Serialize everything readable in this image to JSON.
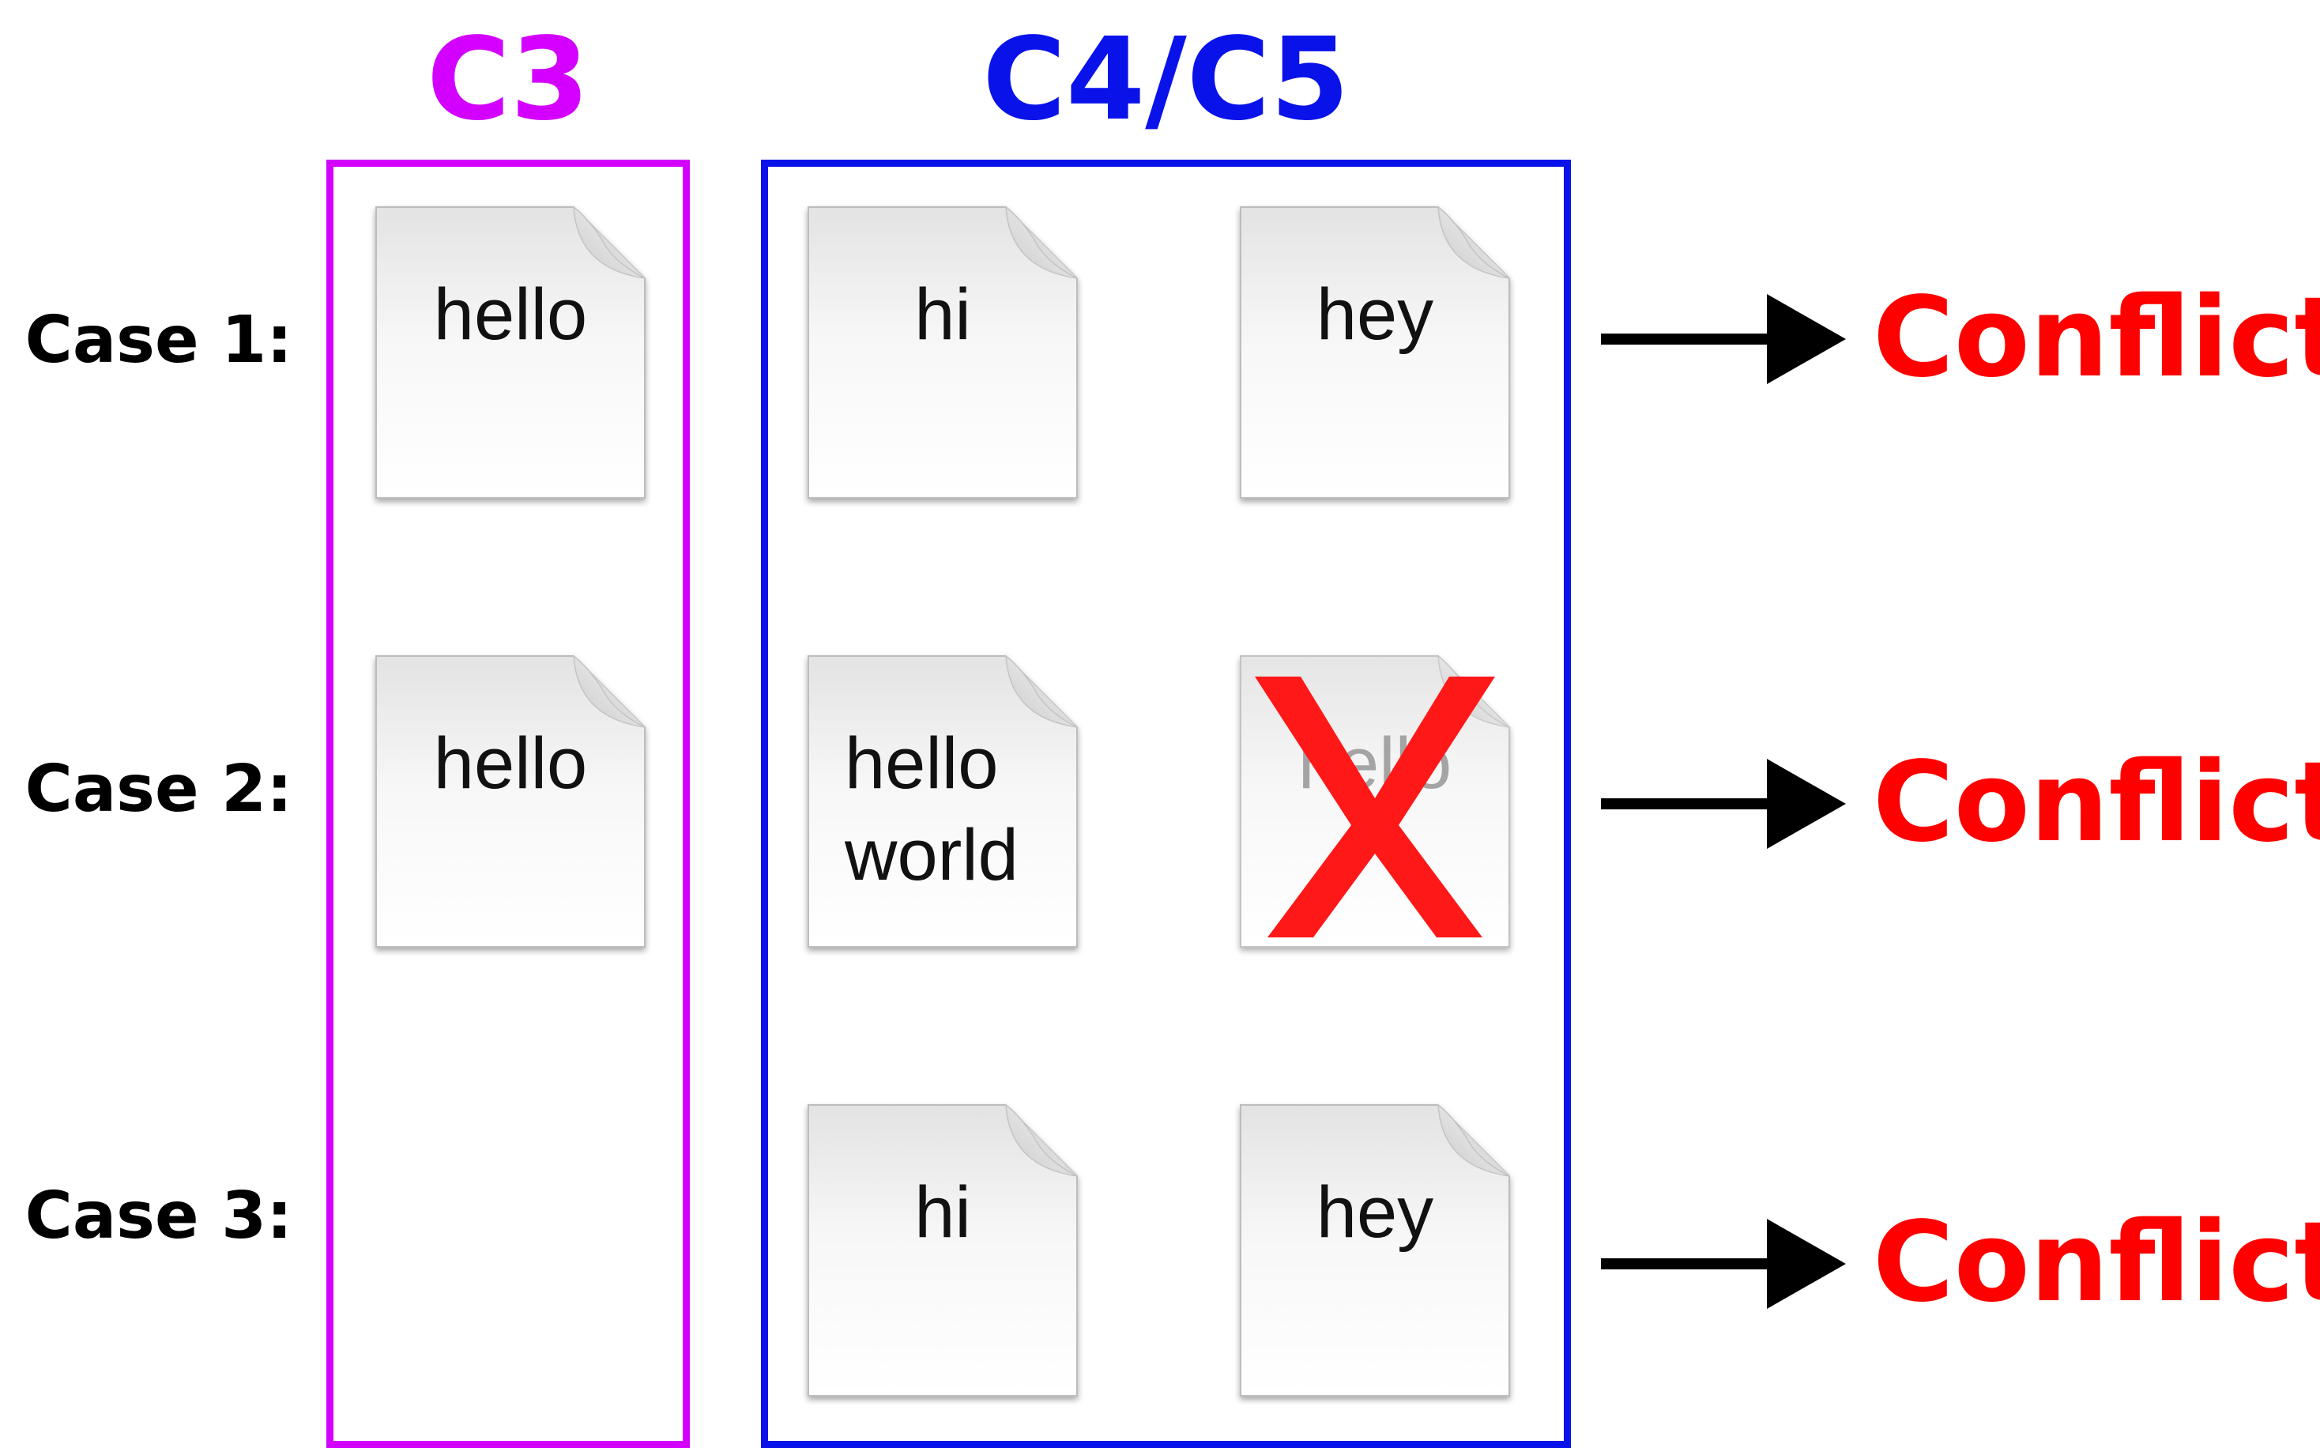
{
  "columns": {
    "c3": {
      "title": "C3",
      "color": "#d400ff"
    },
    "c45": {
      "title": "C4/C5",
      "color": "#0a12ea"
    }
  },
  "cases": [
    {
      "label": "Case 1:",
      "c3_file": "hello",
      "c4_file": "hi",
      "c5_file": "hey",
      "result": "Conflict"
    },
    {
      "label": "Case 2:",
      "c3_file": "hello",
      "c4_file_line1": "hello",
      "c4_file_line2": "world",
      "c5_file_deleted": "hello",
      "result": "Conflict"
    },
    {
      "label": "Case 3:",
      "c3_file": "",
      "c4_file": "hi",
      "c5_file": "hey",
      "result": "Conflict"
    }
  ],
  "icons": {
    "file": "document-icon",
    "deleted": "red-x-icon",
    "arrow": "right-arrow-icon"
  },
  "colors": {
    "conflict": "#ff0000",
    "cross": "#ff0000"
  }
}
